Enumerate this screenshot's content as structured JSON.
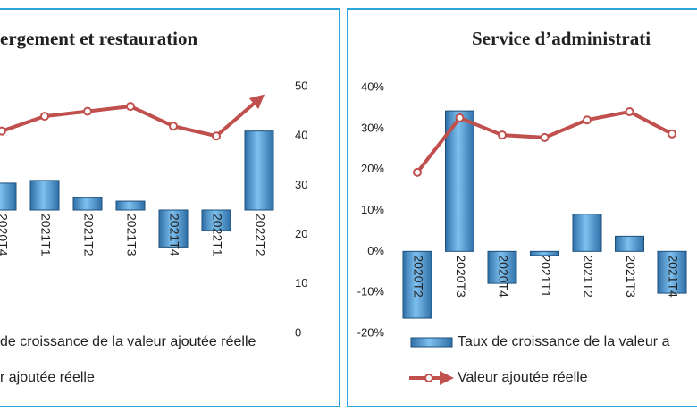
{
  "chart_data": [
    {
      "type": "bar",
      "title": "ergement et restauration",
      "categories": [
        "2020T4",
        "2021T1",
        "2021T2",
        "2021T3",
        "2021T4",
        "2022T1",
        "2022T2"
      ],
      "series": [
        {
          "name": "de croissance de la valeur ajoutée réelle",
          "color": "#4a90c8",
          "values": [
            10.9,
            12,
            5,
            3.6,
            -15,
            -8.3,
            32
          ]
        },
        {
          "name": "r ajoutée réelle",
          "color": "#c0504d",
          "axis": "y2",
          "type": "line",
          "values": [
            41,
            44,
            45,
            46,
            42,
            40,
            47.5
          ]
        }
      ],
      "ylim": [
        -50,
        50
      ],
      "y2lim": [
        0,
        50
      ],
      "y2ticks": [
        0,
        10,
        20,
        30,
        40,
        50
      ]
    },
    {
      "type": "bar",
      "title": "Service d’administrati",
      "categories": [
        "2020T2",
        "2020T3",
        "2020T4",
        "2021T1",
        "2021T2",
        "2021T3",
        "2021T4"
      ],
      "series": [
        {
          "name": "Taux de croissance de la valeur a",
          "color": "#4a90c8",
          "values": [
            -16.3,
            34.3,
            -7.8,
            -1,
            9.1,
            3.7,
            -10.2
          ]
        },
        {
          "name": "Valeur ajoutée réelle",
          "color": "#c0504d",
          "axis": "y2",
          "type": "line",
          "values": [
            39.3,
            52.6,
            48.4,
            47.8,
            52.1,
            54.1,
            48.7
          ]
        }
      ],
      "ylim": [
        -20,
        40
      ],
      "yticks": [
        {
          "value": -20,
          "label": "-20%"
        },
        {
          "value": -10,
          "label": "-10%"
        },
        {
          "value": 0,
          "label": "0%"
        },
        {
          "value": 10,
          "label": "10%"
        },
        {
          "value": 20,
          "label": "20%"
        },
        {
          "value": 30,
          "label": "30%"
        },
        {
          "value": 40,
          "label": "40%"
        }
      ],
      "y2lim": [
        0,
        60
      ]
    }
  ]
}
